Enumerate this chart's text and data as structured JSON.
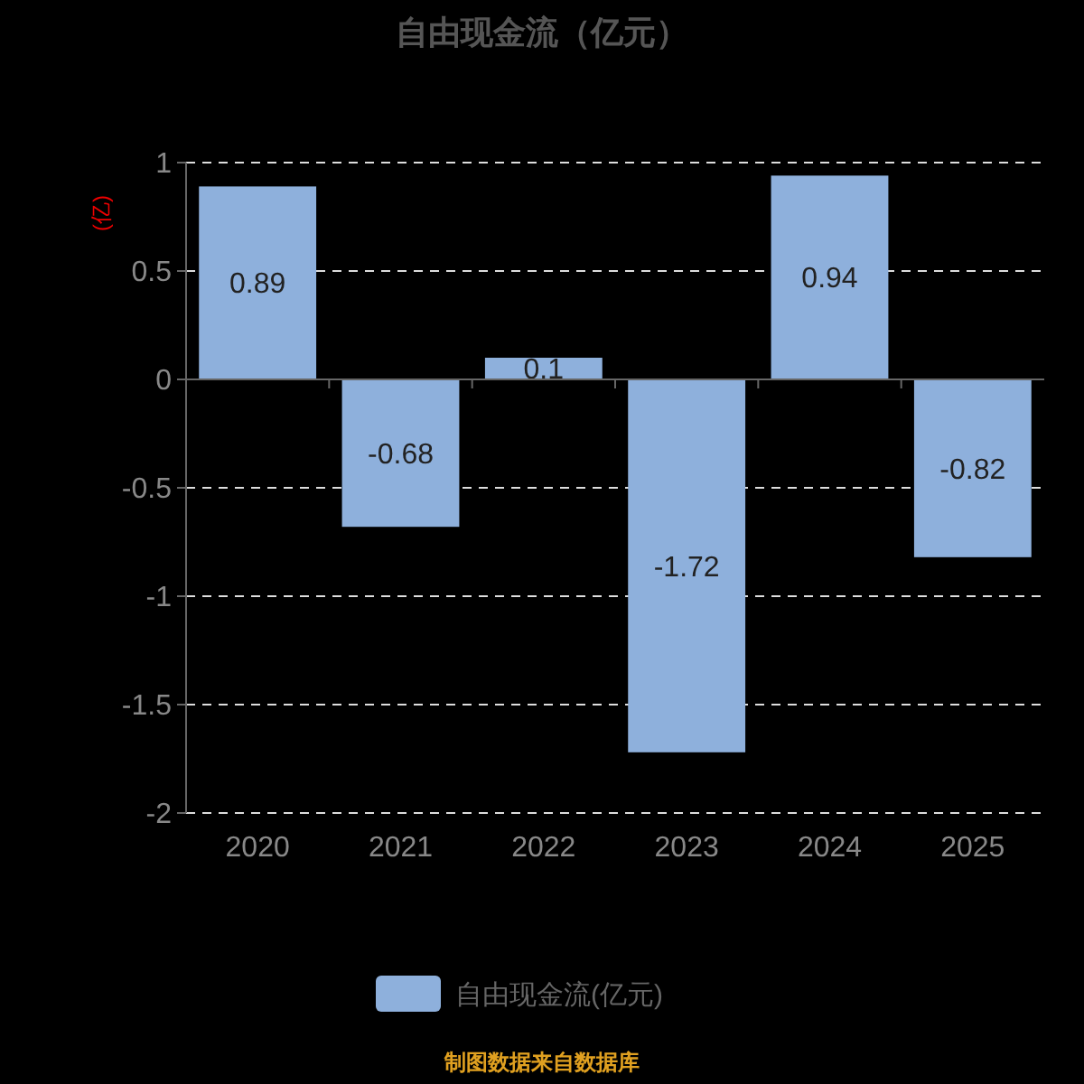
{
  "chart_data": {
    "type": "bar",
    "title": "自由现金流（亿元）",
    "ylabel": "(亿)",
    "categories": [
      "2020",
      "2021",
      "2022",
      "2023",
      "2024",
      "2025"
    ],
    "series": [
      {
        "name": "自由现金流(亿元)",
        "color": "#8eb0dc",
        "values": [
          0.89,
          -0.68,
          0.1,
          -1.72,
          0.94,
          -0.82
        ]
      }
    ],
    "ylim": [
      -2,
      1
    ],
    "yticks": [
      -2,
      -1.5,
      -1,
      -0.5,
      0,
      0.5,
      1
    ],
    "grid": "y",
    "legend": "bottom",
    "data_labels": true,
    "annotations": [
      "制图数据来自数据库"
    ]
  }
}
